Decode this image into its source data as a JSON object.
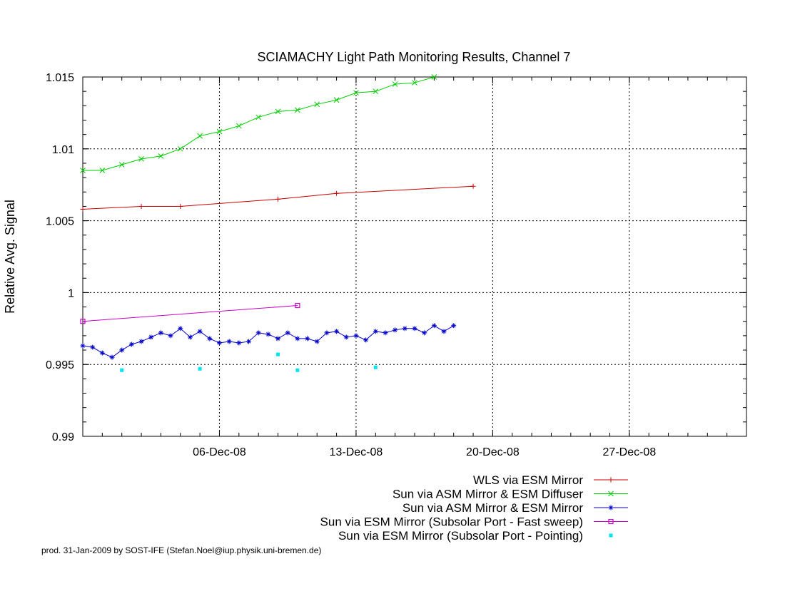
{
  "chart_data": {
    "type": "line",
    "title": "SCIAMACHY Light Path Monitoring Results, Channel 7",
    "ylabel": "Relative Avg. Signal",
    "xlabel": "",
    "footer": "prod. 31-Jan-2009 by SOST-IFE (Stefan.Noel@iup.physik.uni-bremen.de)",
    "xlim": [
      "2008-11-29",
      "2009-01-02"
    ],
    "ylim": [
      0.99,
      1.015
    ],
    "yticks": [
      {
        "value": 0.99,
        "label": "0.99"
      },
      {
        "value": 0.995,
        "label": "0.995"
      },
      {
        "value": 1.0,
        "label": "1"
      },
      {
        "value": 1.005,
        "label": "1.005"
      },
      {
        "value": 1.01,
        "label": "1.01"
      },
      {
        "value": 1.015,
        "label": "1.015"
      }
    ],
    "xticks": [
      {
        "date": "2008-12-06",
        "label": "06-Dec-08"
      },
      {
        "date": "2008-12-13",
        "label": "13-Dec-08"
      },
      {
        "date": "2008-12-20",
        "label": "20-Dec-08"
      },
      {
        "date": "2008-12-27",
        "label": "27-Dec-08"
      }
    ],
    "grid": true,
    "legend_position": "bottom-right, below plot",
    "series": [
      {
        "name": "WLS via ESM Mirror",
        "color": "#cc0000",
        "marker": "plus",
        "points": [
          [
            "2008-11-29T00:00",
            1.0058
          ],
          [
            "2008-12-02T00:00",
            1.006
          ],
          [
            "2008-12-04T00:00",
            1.006
          ],
          [
            "2008-12-09T00:00",
            1.0065
          ],
          [
            "2008-12-12T00:00",
            1.0069
          ],
          [
            "2008-12-19T00:00",
            1.0074
          ]
        ]
      },
      {
        "name": "Sun via ASM Mirror & ESM Diffuser",
        "color": "#00cc00",
        "marker": "cross",
        "points": [
          [
            "2008-11-29T00:00",
            1.0085
          ],
          [
            "2008-11-30T00:00",
            1.0085
          ],
          [
            "2008-12-01T00:00",
            1.0089
          ],
          [
            "2008-12-02T00:00",
            1.0093
          ],
          [
            "2008-12-03T00:00",
            1.0095
          ],
          [
            "2008-12-04T00:00",
            1.01
          ],
          [
            "2008-12-05T00:00",
            1.0109
          ],
          [
            "2008-12-06T00:00",
            1.0112
          ],
          [
            "2008-12-07T00:00",
            1.0116
          ],
          [
            "2008-12-08T00:00",
            1.0122
          ],
          [
            "2008-12-09T00:00",
            1.0126
          ],
          [
            "2008-12-10T00:00",
            1.0127
          ],
          [
            "2008-12-11T00:00",
            1.0131
          ],
          [
            "2008-12-12T00:00",
            1.0134
          ],
          [
            "2008-12-13T00:00",
            1.0139
          ],
          [
            "2008-12-14T00:00",
            1.014
          ],
          [
            "2008-12-15T00:00",
            1.0145
          ],
          [
            "2008-12-16T00:00",
            1.0146
          ],
          [
            "2008-12-17T00:00",
            1.015
          ]
        ]
      },
      {
        "name": "Sun via ASM Mirror & ESM Mirror",
        "color": "#0000cc",
        "marker": "star",
        "points": [
          [
            "2008-11-29T00:00",
            0.9963
          ],
          [
            "2008-11-29T12:00",
            0.9962
          ],
          [
            "2008-11-30T00:00",
            0.9958
          ],
          [
            "2008-11-30T12:00",
            0.9955
          ],
          [
            "2008-12-01T00:00",
            0.996
          ],
          [
            "2008-12-01T12:00",
            0.9964
          ],
          [
            "2008-12-02T00:00",
            0.9966
          ],
          [
            "2008-12-02T12:00",
            0.9969
          ],
          [
            "2008-12-03T00:00",
            0.9972
          ],
          [
            "2008-12-03T12:00",
            0.997
          ],
          [
            "2008-12-04T00:00",
            0.9975
          ],
          [
            "2008-12-04T12:00",
            0.9969
          ],
          [
            "2008-12-05T00:00",
            0.9973
          ],
          [
            "2008-12-05T12:00",
            0.9968
          ],
          [
            "2008-12-06T00:00",
            0.9965
          ],
          [
            "2008-12-06T12:00",
            0.9966
          ],
          [
            "2008-12-07T00:00",
            0.9965
          ],
          [
            "2008-12-07T12:00",
            0.9966
          ],
          [
            "2008-12-08T00:00",
            0.9972
          ],
          [
            "2008-12-08T12:00",
            0.9971
          ],
          [
            "2008-12-09T00:00",
            0.9968
          ],
          [
            "2008-12-09T12:00",
            0.9972
          ],
          [
            "2008-12-10T00:00",
            0.9968
          ],
          [
            "2008-12-10T12:00",
            0.9968
          ],
          [
            "2008-12-11T00:00",
            0.9966
          ],
          [
            "2008-12-11T12:00",
            0.9972
          ],
          [
            "2008-12-12T00:00",
            0.9973
          ],
          [
            "2008-12-12T12:00",
            0.9969
          ],
          [
            "2008-12-13T00:00",
            0.997
          ],
          [
            "2008-12-13T12:00",
            0.9967
          ],
          [
            "2008-12-14T00:00",
            0.9973
          ],
          [
            "2008-12-14T12:00",
            0.9972
          ],
          [
            "2008-12-15T00:00",
            0.9974
          ],
          [
            "2008-12-15T12:00",
            0.9975
          ],
          [
            "2008-12-16T00:00",
            0.9975
          ],
          [
            "2008-12-16T12:00",
            0.9972
          ],
          [
            "2008-12-17T00:00",
            0.9977
          ],
          [
            "2008-12-17T12:00",
            0.9973
          ],
          [
            "2008-12-18T00:00",
            0.9977
          ]
        ]
      },
      {
        "name": "Sun via ESM Mirror (Subsolar Port - Fast sweep)",
        "color": "#cc00cc",
        "marker": "square",
        "points": [
          [
            "2008-11-29T00:00",
            0.998
          ],
          [
            "2008-12-10T00:00",
            0.9991
          ]
        ]
      },
      {
        "name": "Sun via ESM Mirror (Subsolar Port - Pointing)",
        "color": "#00e5ee",
        "marker": "dot",
        "points": [
          [
            "2008-12-01T00:00",
            0.9946
          ],
          [
            "2008-12-05T00:00",
            0.9947
          ],
          [
            "2008-12-09T00:00",
            0.9957
          ],
          [
            "2008-12-10T00:00",
            0.9946
          ],
          [
            "2008-12-14T00:00",
            0.9948
          ]
        ]
      }
    ]
  }
}
